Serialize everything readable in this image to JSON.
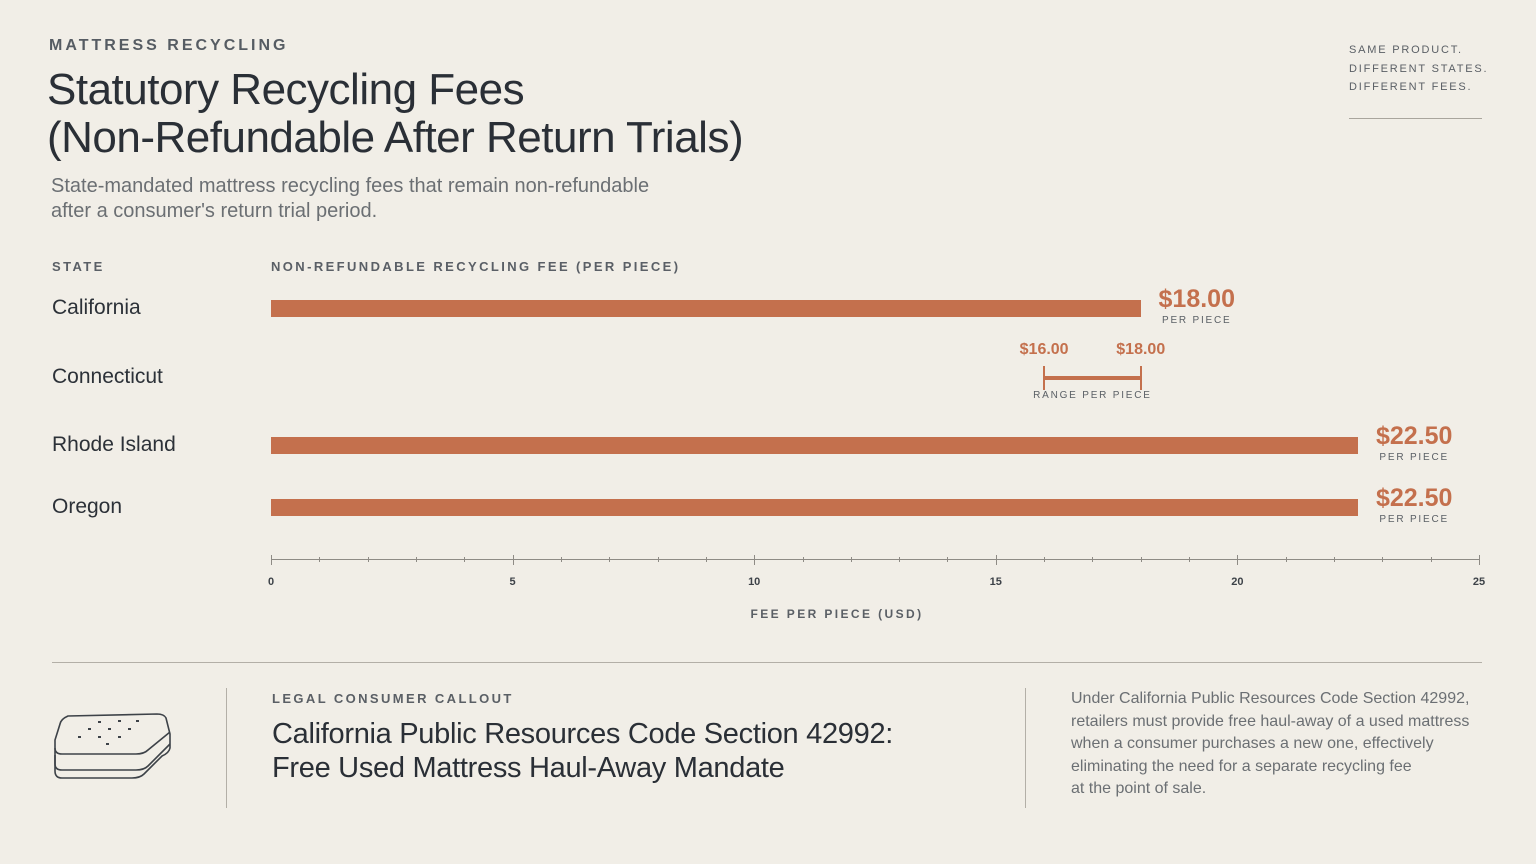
{
  "header": {
    "eyebrow": "MATTRESS RECYCLING",
    "title_line1": "Statutory Recycling Fees",
    "title_line2": "(Non-Refundable After Return Trials)",
    "subtitle_line1": "State-mandated mattress recycling fees that remain non-refundable",
    "subtitle_line2": "after a consumer's return trial period.",
    "side_note": [
      "SAME PRODUCT.",
      "DIFFERENT STATES.",
      "DIFFERENT FEES."
    ]
  },
  "chart_data": {
    "type": "bar",
    "orientation": "horizontal",
    "column_state_label": "STATE",
    "column_fee_label": "NON-REFUNDABLE RECYCLING FEE (PER PIECE)",
    "xlabel": "FEE PER PIECE (USD)",
    "xlim": [
      0,
      25
    ],
    "x_ticks": [
      0,
      5,
      10,
      15,
      20,
      25
    ],
    "unit_label": "PER PIECE",
    "range_unit_label": "RANGE PER PIECE",
    "rows": [
      {
        "state": "California",
        "kind": "bar",
        "value": 18.0,
        "label": "$18.00"
      },
      {
        "state": "Connecticut",
        "kind": "range",
        "low": 16.0,
        "high": 18.0,
        "low_label": "$16.00",
        "high_label": "$18.00"
      },
      {
        "state": "Rhode Island",
        "kind": "bar",
        "value": 22.5,
        "label": "$22.50"
      },
      {
        "state": "Oregon",
        "kind": "bar",
        "value": 22.5,
        "label": "$22.50"
      }
    ],
    "bar_color": "#c4704d"
  },
  "callout": {
    "eyebrow": "LEGAL CONSUMER CALLOUT",
    "title_line1": "California Public Resources Code Section 42992:",
    "title_line2": "Free Used Mattress Haul-Away Mandate",
    "body_lines": [
      "Under California Public Resources Code Section 42992,",
      "retailers must provide free haul-away of a used mattress",
      "when a consumer purchases a new one, effectively",
      "eliminating the need for a separate recycling fee",
      "at the point of sale."
    ],
    "icon": "mattress-icon"
  }
}
